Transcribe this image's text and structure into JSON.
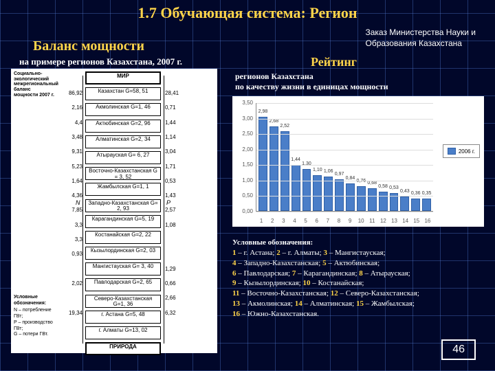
{
  "title": "1.7 Обучающая система: Регион",
  "order_lines": [
    "Заказ Министерства Науки и",
    "Образования Казахстана"
  ],
  "left": {
    "title": "Баланс мощности",
    "subtitle": "на примере регионов Казахстана, 2007 г.",
    "caption": "Социально- экологический межрегиональный баланс мощности 2007 г.",
    "legend_title": "Условные обозначения:",
    "legend_lines": [
      "N – потребление ГВт;",
      "P – производство ГВт;",
      "G – потери ГВт."
    ],
    "top_env": "МИР",
    "bottom_env": "ПРИРОДА",
    "n_label": "N",
    "p_label": "P",
    "ladder": [
      {
        "label": "Казахстан G=58, 51",
        "n": "86,92",
        "p": "28,41"
      },
      {
        "label": "Акмолинская G=1, 46",
        "n": "2,16",
        "p": "0,71"
      },
      {
        "label": "Актюбинская G=2, 96",
        "n": "4,4",
        "p": "1,44"
      },
      {
        "label": "Алматинская G=2, 34",
        "n": "3,48",
        "p": "1,14"
      },
      {
        "label": "Атырауская G= 6, 27",
        "n": "9,31",
        "p": "3,04"
      },
      {
        "label": "Восточно-Казахстанская G = 3, 52",
        "n": "5,23",
        "p": "1,71"
      },
      {
        "label": "Жамбылская G=1, 1",
        "n": "1,64",
        "p": "0,53"
      },
      {
        "label": "Западно-Казахстанская G= 2, 93",
        "n": "4,36",
        "p": "1,43"
      },
      {
        "label": "Карагандинская G=5, 19",
        "n": "7,85",
        "p": "2,57"
      },
      {
        "label": "Костанайская G=2, 22",
        "n": "3,3",
        "p": "1,08"
      },
      {
        "label": "Кызылординская G=2, 03",
        "n": "3,3",
        "p": ""
      },
      {
        "label": "Мангистауская G= 3, 40",
        "n": "0,93",
        "p": ""
      },
      {
        "label": "Павлодарская G=2, 65",
        "n": "",
        "p": "1,29"
      },
      {
        "label": "Северо-Казахстанская G=1, 36",
        "n": "2,02",
        "p": "0,66"
      },
      {
        "label": "г. Астана G=5, 48",
        "n": "",
        "p": "2,66"
      },
      {
        "label": "г. Алматы G=13, 02",
        "n": "19,34",
        "p": "6,32"
      }
    ]
  },
  "right": {
    "title": "Рейтинг",
    "subtitle": "регионов Казахстана\nпо качеству жизни в единицах мощности"
  },
  "chart": {
    "type": "bar",
    "categories": [
      "1",
      "2",
      "3",
      "4",
      "5",
      "6",
      "7",
      "8",
      "9",
      "10",
      "11",
      "12",
      "13",
      "14",
      "15",
      "16"
    ],
    "values": [
      2.98,
      2.68,
      2.52,
      1.44,
      1.3,
      1.1,
      1.06,
      0.97,
      0.84,
      0.76,
      0.68,
      0.58,
      0.53,
      0.43,
      0.36,
      0.35
    ],
    "bar_color": "#4a7ec8",
    "bar_border": "#2f5fa5",
    "ylim": [
      0,
      3.5
    ],
    "ytick_step": 0.5,
    "grid_color": "#dddddd",
    "background": "#ffffff",
    "legend_label": "2006 г.",
    "value_fontsize": 7,
    "label_fontsize": 8
  },
  "key": {
    "title": "Условные обозначения:",
    "items": [
      {
        "n": "1",
        "t": "г. Астана"
      },
      {
        "n": "2",
        "t": "г. Алматы"
      },
      {
        "n": "3",
        "t": "Мангистауская"
      },
      {
        "n": "4",
        "t": "Западно-Казахстанская"
      },
      {
        "n": "5",
        "t": "Актюбинская"
      },
      {
        "n": "6",
        "t": "Павлодарская"
      },
      {
        "n": "7",
        "t": "Карагандинская"
      },
      {
        "n": "8",
        "t": "Атырауская"
      },
      {
        "n": "9",
        "t": "Кызылординская"
      },
      {
        "n": "10",
        "t": "Костанайская"
      },
      {
        "n": "11",
        "t": "Восточно-Казахстанская"
      },
      {
        "n": "12",
        "t": "Северо-Казахстанская"
      },
      {
        "n": "13",
        "t": "Акмолинская"
      },
      {
        "n": "14",
        "t": "Алматинская"
      },
      {
        "n": "15",
        "t": "Жамбылская"
      },
      {
        "n": "16",
        "t": "Южно-Казахстанская"
      }
    ],
    "breaks": [
      3,
      5,
      8,
      10,
      12,
      15
    ]
  },
  "page_number": "46",
  "colors": {
    "accent": "#ffd54a",
    "bg": "#102b66"
  }
}
